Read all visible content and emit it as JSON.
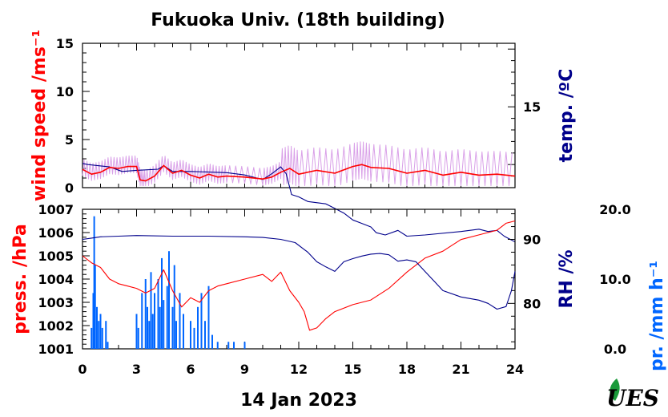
{
  "chart_data": [
    {
      "type": "line",
      "title": "Fukuoka Univ. (18th building)",
      "x_unit": "hour",
      "xlim": [
        0,
        24
      ],
      "left_axis": {
        "label": "wind speed /ms⁻¹",
        "color": "#ff0000",
        "ylim": [
          0,
          15
        ],
        "ticks": [
          0,
          5,
          10,
          15
        ]
      },
      "right_axis": {
        "label": "temp. /ºC",
        "color": "#00008b",
        "ticks": [
          {
            "value": 15,
            "label": "15"
          }
        ]
      },
      "series": [
        {
          "axis": "right",
          "color": "#00008b",
          "points": [
            [
              0,
              10.1
            ],
            [
              0.3,
              10.0
            ],
            [
              1.5,
              9.8
            ],
            [
              2.2,
              9.4
            ],
            [
              3.0,
              9.5
            ],
            [
              4.2,
              9.6
            ],
            [
              4.5,
              9.9
            ],
            [
              5.0,
              9.4
            ],
            [
              6.0,
              9.4
            ],
            [
              8.0,
              9.3
            ],
            [
              9.0,
              9.1
            ],
            [
              9.5,
              8.9
            ],
            [
              10.0,
              8.7
            ],
            [
              10.5,
              9.2
            ],
            [
              11.0,
              9.8
            ],
            [
              11.3,
              9.2
            ],
            [
              11.6,
              7.4
            ],
            [
              12.0,
              7.2
            ],
            [
              12.5,
              6.8
            ],
            [
              13.5,
              6.6
            ],
            [
              14.0,
              6.2
            ],
            [
              14.5,
              5.8
            ],
            [
              15.0,
              5.2
            ],
            [
              15.5,
              4.9
            ],
            [
              16.0,
              4.6
            ],
            [
              16.3,
              4.1
            ],
            [
              16.8,
              3.9
            ],
            [
              17.5,
              4.3
            ],
            [
              18.0,
              3.8
            ],
            [
              19.0,
              3.9
            ],
            [
              21.0,
              4.2
            ],
            [
              22.0,
              4.4
            ],
            [
              22.5,
              4.2
            ],
            [
              23.0,
              4.3
            ],
            [
              23.4,
              3.8
            ],
            [
              24.0,
              3.3
            ]
          ]
        },
        {
          "axis": "left",
          "color": "#ff0000",
          "points": [
            [
              0,
              1.9
            ],
            [
              0.5,
              1.4
            ],
            [
              1.0,
              1.6
            ],
            [
              1.5,
              2.1
            ],
            [
              2.0,
              2.0
            ],
            [
              2.5,
              2.2
            ],
            [
              3.0,
              2.2
            ],
            [
              3.2,
              0.8
            ],
            [
              3.5,
              0.7
            ],
            [
              4.0,
              1.2
            ],
            [
              4.5,
              2.3
            ],
            [
              5.0,
              1.5
            ],
            [
              5.5,
              1.8
            ],
            [
              6.0,
              1.3
            ],
            [
              6.5,
              1.0
            ],
            [
              7.0,
              1.4
            ],
            [
              7.5,
              1.1
            ],
            [
              8.0,
              1.2
            ],
            [
              9.0,
              1.1
            ],
            [
              10.0,
              0.9
            ],
            [
              10.5,
              1.1
            ],
            [
              11.0,
              1.6
            ],
            [
              11.5,
              2.0
            ],
            [
              12.0,
              1.4
            ],
            [
              13.0,
              1.8
            ],
            [
              14.0,
              1.5
            ],
            [
              15.0,
              2.2
            ],
            [
              15.5,
              2.4
            ],
            [
              16.0,
              2.1
            ],
            [
              17.0,
              2.0
            ],
            [
              18.0,
              1.5
            ],
            [
              19.0,
              1.8
            ],
            [
              20.0,
              1.3
            ],
            [
              21.0,
              1.6
            ],
            [
              22.0,
              1.3
            ],
            [
              23.0,
              1.4
            ],
            [
              24.0,
              1.2
            ]
          ]
        }
      ]
    },
    {
      "type": "line",
      "xlabel": "14 Jan 2023",
      "xlim": [
        0,
        24
      ],
      "xticks": [
        0,
        3,
        6,
        9,
        12,
        15,
        18,
        21,
        24
      ],
      "left_axis": {
        "label": "press. /hPa",
        "color": "#ff0000",
        "ylim": [
          1001,
          1007
        ],
        "ticks": [
          1001,
          1002,
          1003,
          1004,
          1005,
          1006,
          1007
        ]
      },
      "right_axis": {
        "label": "RH /%",
        "color": "#00008b",
        "ylim": [
          72.9,
          94.7
        ],
        "ticks": [
          80,
          90
        ]
      },
      "third_axis": {
        "label": "pr. /mm h⁻¹",
        "color": "#0066ff",
        "ylim": [
          0,
          20
        ],
        "tick_labels": [
          "20.0",
          "10.0",
          "0.0"
        ]
      },
      "series": [
        {
          "axis": "left",
          "color": "#ff0000",
          "points": [
            [
              0,
              1005.0
            ],
            [
              0.5,
              1004.7
            ],
            [
              1.0,
              1004.5
            ],
            [
              1.5,
              1004.0
            ],
            [
              2.0,
              1003.8
            ],
            [
              2.5,
              1003.7
            ],
            [
              3.0,
              1003.6
            ],
            [
              3.5,
              1003.4
            ],
            [
              4.0,
              1003.6
            ],
            [
              4.5,
              1004.4
            ],
            [
              5.0,
              1003.5
            ],
            [
              5.5,
              1002.8
            ],
            [
              6.0,
              1003.2
            ],
            [
              6.5,
              1003.0
            ],
            [
              7.0,
              1003.5
            ],
            [
              7.5,
              1003.7
            ],
            [
              8.0,
              1003.8
            ],
            [
              9.0,
              1004.0
            ],
            [
              10.0,
              1004.2
            ],
            [
              10.5,
              1003.9
            ],
            [
              11.0,
              1004.3
            ],
            [
              11.5,
              1003.5
            ],
            [
              12.0,
              1003.0
            ],
            [
              12.3,
              1002.6
            ],
            [
              12.6,
              1001.8
            ],
            [
              13.0,
              1001.9
            ],
            [
              13.5,
              1002.3
            ],
            [
              14.0,
              1002.6
            ],
            [
              15.0,
              1002.9
            ],
            [
              16.0,
              1003.1
            ],
            [
              17.0,
              1003.6
            ],
            [
              18.0,
              1004.3
            ],
            [
              19.0,
              1004.9
            ],
            [
              20.0,
              1005.2
            ],
            [
              21.0,
              1005.7
            ],
            [
              22.0,
              1005.9
            ],
            [
              23.0,
              1006.1
            ],
            [
              23.5,
              1006.4
            ],
            [
              24.0,
              1006.5
            ]
          ]
        },
        {
          "axis": "right",
          "color": "#00008b",
          "points": [
            [
              0,
              90.0
            ],
            [
              0.5,
              90.2
            ],
            [
              1.0,
              90.4
            ],
            [
              2.0,
              90.5
            ],
            [
              3.0,
              90.6
            ],
            [
              5.0,
              90.5
            ],
            [
              7.0,
              90.5
            ],
            [
              9.0,
              90.4
            ],
            [
              10.0,
              90.3
            ],
            [
              11.0,
              90.0
            ],
            [
              11.8,
              89.5
            ],
            [
              12.5,
              88.0
            ],
            [
              13.0,
              86.5
            ],
            [
              13.5,
              85.7
            ],
            [
              14.0,
              85.0
            ],
            [
              14.5,
              86.5
            ],
            [
              15.0,
              87.0
            ],
            [
              15.5,
              87.4
            ],
            [
              16.0,
              87.7
            ],
            [
              16.5,
              87.8
            ],
            [
              17.0,
              87.6
            ],
            [
              17.5,
              86.6
            ],
            [
              18.0,
              86.8
            ],
            [
              18.5,
              86.5
            ],
            [
              19.0,
              85.0
            ],
            [
              19.5,
              83.5
            ],
            [
              20.0,
              82.0
            ],
            [
              21.0,
              81.0
            ],
            [
              22.0,
              80.5
            ],
            [
              22.5,
              80.0
            ],
            [
              23.0,
              79.1
            ],
            [
              23.5,
              79.5
            ],
            [
              23.8,
              82.0
            ],
            [
              24.0,
              85.0
            ]
          ]
        },
        {
          "axis": "third",
          "color": "#0066ff",
          "type": "bar",
          "points": [
            [
              0.5,
              3.0
            ],
            [
              0.6,
              8.0
            ],
            [
              0.65,
              19.0
            ],
            [
              0.7,
              12.0
            ],
            [
              0.8,
              6.0
            ],
            [
              0.9,
              4.0
            ],
            [
              1.0,
              5.0
            ],
            [
              1.1,
              3.0
            ],
            [
              1.3,
              4.0
            ],
            [
              1.4,
              1.0
            ],
            [
              3.0,
              5.0
            ],
            [
              3.1,
              3.0
            ],
            [
              3.3,
              8.0
            ],
            [
              3.5,
              10.0
            ],
            [
              3.6,
              6.0
            ],
            [
              3.7,
              4.0
            ],
            [
              3.8,
              11.0
            ],
            [
              3.9,
              5.0
            ],
            [
              4.0,
              8.0
            ],
            [
              4.2,
              10.0
            ],
            [
              4.3,
              6.0
            ],
            [
              4.4,
              13.0
            ],
            [
              4.5,
              7.0
            ],
            [
              4.7,
              9.0
            ],
            [
              4.8,
              14.0
            ],
            [
              5.0,
              6.0
            ],
            [
              5.1,
              12.0
            ],
            [
              5.2,
              4.0
            ],
            [
              5.4,
              8.0
            ],
            [
              5.6,
              5.0
            ],
            [
              6.0,
              4.0
            ],
            [
              6.2,
              3.0
            ],
            [
              6.4,
              6.0
            ],
            [
              6.6,
              8.0
            ],
            [
              6.8,
              4.0
            ],
            [
              7.0,
              9.0
            ],
            [
              7.2,
              2.0
            ],
            [
              7.5,
              1.0
            ],
            [
              8.1,
              1.0
            ],
            [
              8.4,
              1.0
            ],
            [
              9.0,
              1.0
            ]
          ]
        }
      ]
    }
  ],
  "logo": {
    "text": "UES",
    "icon": "leaf-icon"
  }
}
